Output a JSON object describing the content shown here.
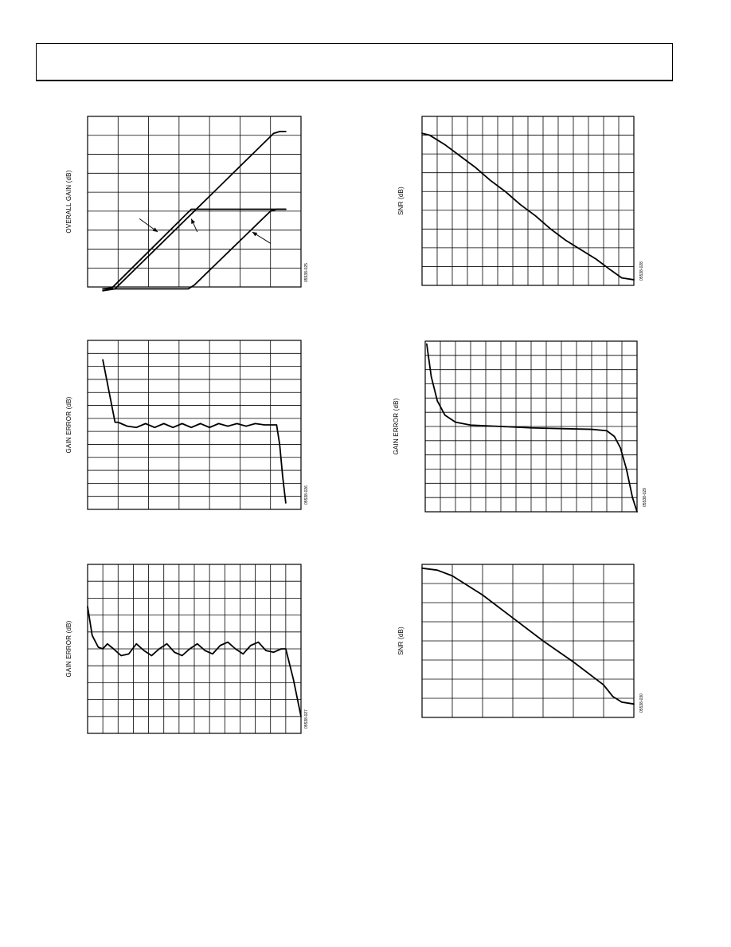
{
  "chart_data": [
    {
      "type": "line",
      "ylabel": "OVERALL GAIN (dB)",
      "figure_code": "05538-025",
      "grid": {
        "cols": 7,
        "rows": 9
      },
      "xlim": [
        0,
        7
      ],
      "ylim": [
        0,
        9
      ],
      "series": [
        {
          "x": [
            0.5,
            0.9,
            6.1,
            6.3,
            6.5
          ],
          "y": [
            -0.1,
            -0.1,
            8.1,
            8.2,
            8.2
          ]
        },
        {
          "x": [
            0.5,
            0.8,
            3.4,
            3.6,
            6.5
          ],
          "y": [
            -0.1,
            -0.05,
            4.1,
            4.1,
            4.1
          ]
        },
        {
          "x": [
            0.5,
            0.9,
            3.3,
            3.5,
            6.0,
            6.2,
            6.5
          ],
          "y": [
            -0.2,
            -0.1,
            -0.1,
            0.1,
            4.0,
            4.1,
            4.1
          ]
        }
      ],
      "annotations": [
        {
          "x1": 1.7,
          "y1": 3.6,
          "x2": 2.3,
          "y2": 2.9
        },
        {
          "x1": 3.6,
          "y1": 2.9,
          "x2": 3.4,
          "y2": 3.6
        },
        {
          "x1": 6.0,
          "y1": 2.3,
          "x2": 5.4,
          "y2": 2.9
        }
      ]
    },
    {
      "type": "line",
      "ylabel": "SNR (dB)",
      "figure_code": "05538-028",
      "grid": {
        "cols": 14,
        "rows": 9
      },
      "xlim": [
        0,
        14
      ],
      "ylim": [
        0,
        9
      ],
      "series": [
        {
          "x": [
            0,
            0.5,
            1.5,
            2.5,
            3.5,
            4.5,
            5.5,
            6.5,
            7.5,
            8.5,
            9.5,
            10.5,
            11.5,
            12.5,
            13.2,
            14
          ],
          "y": [
            8.1,
            8.0,
            7.5,
            6.9,
            6.3,
            5.6,
            5.0,
            4.3,
            3.7,
            3.0,
            2.4,
            1.9,
            1.4,
            0.8,
            0.4,
            0.3
          ]
        }
      ]
    },
    {
      "type": "line",
      "ylabel": "GAIN ERROR (dB)",
      "figure_code": "05538-026",
      "grid": {
        "cols": 7,
        "rows": 13
      },
      "xlim": [
        0,
        7
      ],
      "ylim": [
        -6.5,
        6.5
      ],
      "series": [
        {
          "x": [
            0.5,
            0.9,
            1.0,
            1.3,
            1.6,
            1.9,
            2.2,
            2.5,
            2.8,
            3.1,
            3.4,
            3.7,
            4.0,
            4.3,
            4.6,
            4.9,
            5.2,
            5.5,
            5.8,
            6.0,
            6.2,
            6.3,
            6.4,
            6.5
          ],
          "y": [
            5.0,
            0.2,
            0.2,
            -0.1,
            -0.2,
            0.1,
            -0.2,
            0.1,
            -0.2,
            0.1,
            -0.2,
            0.1,
            -0.2,
            0.1,
            -0.1,
            0.1,
            -0.1,
            0.1,
            0.0,
            0.0,
            0.0,
            -1.5,
            -4.0,
            -6.0
          ]
        }
      ]
    },
    {
      "type": "line",
      "ylabel": "GAIN ERROR (dB)",
      "figure_code": "05538-029",
      "grid": {
        "cols": 14,
        "rows": 12
      },
      "xlim": [
        0,
        14
      ],
      "ylim": [
        -6,
        6
      ],
      "series": [
        {
          "x": [
            0.1,
            0.4,
            0.8,
            1.3,
            2.0,
            3.0,
            5.0,
            7.0,
            9.0,
            11.0,
            12.0,
            12.5,
            12.9,
            13.3,
            13.7,
            14.0
          ],
          "y": [
            5.8,
            3.5,
            1.8,
            0.8,
            0.3,
            0.1,
            0.0,
            -0.1,
            -0.15,
            -0.2,
            -0.3,
            -0.7,
            -1.5,
            -3.0,
            -5.0,
            -6.0
          ]
        }
      ]
    },
    {
      "type": "line",
      "ylabel": "GAIN ERROR (dB)",
      "figure_code": "05538-027",
      "grid": {
        "cols": 14,
        "rows": 10
      },
      "xlim": [
        0,
        14
      ],
      "ylim": [
        -5,
        5
      ],
      "series": [
        {
          "x": [
            0,
            0.3,
            0.7,
            1.0,
            1.3,
            1.7,
            2.2,
            2.7,
            3.2,
            3.7,
            4.2,
            4.7,
            5.2,
            5.7,
            6.2,
            6.7,
            7.2,
            7.7,
            8.2,
            8.7,
            9.2,
            9.7,
            10.2,
            10.7,
            11.2,
            11.7,
            12.2,
            12.7,
            13.0,
            13.5,
            14.0
          ],
          "y": [
            2.5,
            0.8,
            0.1,
            0.0,
            0.3,
            0.0,
            -0.4,
            -0.3,
            0.3,
            -0.1,
            -0.4,
            0.0,
            0.3,
            -0.2,
            -0.4,
            0.0,
            0.3,
            -0.1,
            -0.3,
            0.2,
            0.4,
            0.0,
            -0.3,
            0.2,
            0.4,
            -0.1,
            -0.2,
            0.0,
            0.0,
            -1.8,
            -4.0
          ]
        }
      ]
    },
    {
      "type": "line",
      "ylabel": "SNR (dB)",
      "figure_code": "05538-030",
      "grid": {
        "cols": 7,
        "rows": 8
      },
      "xlim": [
        0,
        7
      ],
      "ylim": [
        0,
        8
      ],
      "series": [
        {
          "x": [
            0,
            0.5,
            1.0,
            1.5,
            2.0,
            3.0,
            4.0,
            5.0,
            6.0,
            6.3,
            6.6,
            7.0
          ],
          "y": [
            7.8,
            7.7,
            7.4,
            6.9,
            6.4,
            5.2,
            4.0,
            2.9,
            1.7,
            1.1,
            0.8,
            0.7
          ]
        }
      ]
    }
  ]
}
